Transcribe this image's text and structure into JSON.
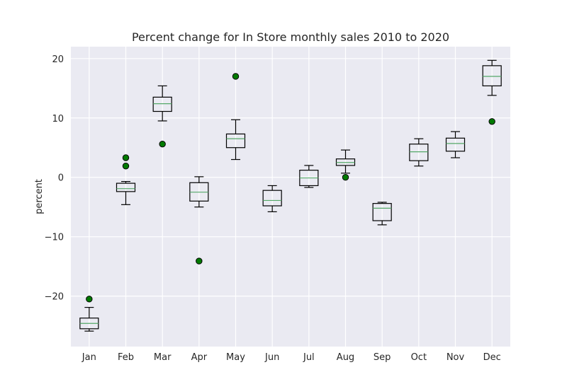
{
  "chart_data": {
    "type": "box",
    "title": "Percent change for In Store monthly sales 2010 to 2020",
    "xlabel": "",
    "ylabel": "percent",
    "ylim": [
      -28.5,
      22
    ],
    "yticks": [
      -20,
      -10,
      0,
      10,
      20
    ],
    "ytick_labels": [
      "−20",
      "−10",
      "0",
      "10",
      "20"
    ],
    "grid": true,
    "categories": [
      "Jan",
      "Feb",
      "Mar",
      "Apr",
      "May",
      "Jun",
      "Jul",
      "Aug",
      "Sep",
      "Oct",
      "Nov",
      "Dec"
    ],
    "boxes": [
      {
        "whisker_low": -25.9,
        "q1": -25.5,
        "median": -24.6,
        "q3": -23.7,
        "whisker_high": -21.9,
        "outliers": [
          -20.5
        ]
      },
      {
        "whisker_low": -4.6,
        "q1": -2.4,
        "median": -1.9,
        "q3": -1.0,
        "whisker_high": -0.7,
        "outliers": [
          3.3,
          1.9
        ]
      },
      {
        "whisker_low": 9.5,
        "q1": 11.1,
        "median": 12.4,
        "q3": 13.5,
        "whisker_high": 15.4,
        "outliers": [
          5.6
        ]
      },
      {
        "whisker_low": -5.0,
        "q1": -4.0,
        "median": -2.5,
        "q3": -0.9,
        "whisker_high": 0.1,
        "outliers": [
          -14.1
        ]
      },
      {
        "whisker_low": 3.0,
        "q1": 5.0,
        "median": 6.5,
        "q3": 7.3,
        "whisker_high": 9.7,
        "outliers": [
          17.0
        ]
      },
      {
        "whisker_low": -5.8,
        "q1": -4.8,
        "median": -3.9,
        "q3": -2.2,
        "whisker_high": -1.4,
        "outliers": []
      },
      {
        "whisker_low": -1.7,
        "q1": -1.4,
        "median": -0.1,
        "q3": 1.2,
        "whisker_high": 2.0,
        "outliers": []
      },
      {
        "whisker_low": 0.7,
        "q1": 2.0,
        "median": 2.5,
        "q3": 3.1,
        "whisker_high": 4.6,
        "outliers": [
          0.0
        ]
      },
      {
        "whisker_low": -8.0,
        "q1": -7.3,
        "median": -5.2,
        "q3": -4.4,
        "whisker_high": -4.2,
        "outliers": []
      },
      {
        "whisker_low": 1.9,
        "q1": 2.8,
        "median": 4.3,
        "q3": 5.6,
        "whisker_high": 6.5,
        "outliers": []
      },
      {
        "whisker_low": 3.3,
        "q1": 4.4,
        "median": 5.7,
        "q3": 6.6,
        "whisker_high": 7.7,
        "outliers": []
      },
      {
        "whisker_low": 13.8,
        "q1": 15.4,
        "median": 17.0,
        "q3": 18.8,
        "whisker_high": 19.7,
        "outliers": [
          9.4
        ]
      }
    ],
    "colors": {
      "background": "#eaeaf2",
      "grid": "#ffffff",
      "box_edge": "#000000",
      "median": "#55a868",
      "outlier_fill": "#007a00",
      "outlier_edge": "#000000",
      "text": "#262626"
    }
  }
}
